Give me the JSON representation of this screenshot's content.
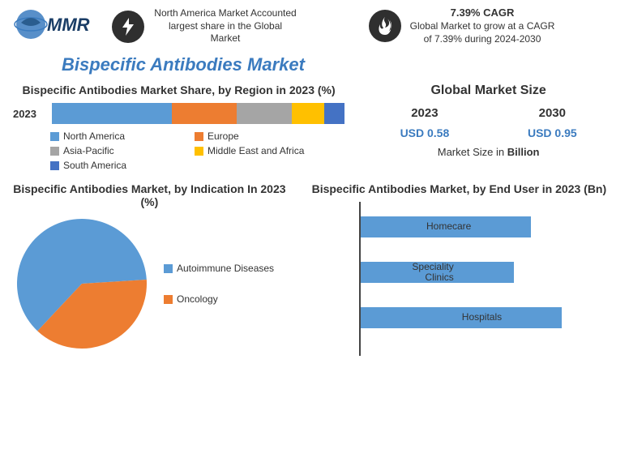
{
  "logo_text": "MMR",
  "top_stats": {
    "left": {
      "icon": "bolt",
      "text": "North America Market Accounted largest share in the Global Market"
    },
    "right": {
      "icon": "flame",
      "title": "7.39% CAGR",
      "text": "Global Market to grow at a CAGR of 7.39% during 2024-2030"
    }
  },
  "main_title": "Bispecific Antibodies Market",
  "region_chart": {
    "title": "Bispecific Antibodies Market Share, by Region in 2023 (%)",
    "year_label": "2023",
    "segments": [
      {
        "label": "North America",
        "value": 41,
        "color": "#5b9bd5"
      },
      {
        "label": "Europe",
        "value": 22,
        "color": "#ed7d31"
      },
      {
        "label": "Asia-Pacific",
        "value": 19,
        "color": "#a5a5a5"
      },
      {
        "label": "Middle East and Africa",
        "value": 11,
        "color": "#ffc000"
      },
      {
        "label": "South America",
        "value": 7,
        "color": "#4472c4"
      }
    ]
  },
  "market_size": {
    "title": "Global Market Size",
    "years": [
      "2023",
      "2030"
    ],
    "values": [
      "USD 0.58",
      "USD 0.95"
    ],
    "unit_prefix": "Market Size in ",
    "unit_bold": "Billion"
  },
  "indication_chart": {
    "title": "Bispecific Antibodies Market, by Indication In 2023 (%)",
    "slices": [
      {
        "label": "Autoimmune Diseases",
        "value": 62,
        "color": "#5b9bd5"
      },
      {
        "label": "Oncology",
        "value": 38,
        "color": "#ed7d31"
      }
    ]
  },
  "enduser_chart": {
    "title": "Bispecific Antibodies Market, by End User in 2023 (Bn)",
    "bar_color": "#5b9bd5",
    "max": 100,
    "bars": [
      {
        "label": "Homecare",
        "value": 78
      },
      {
        "label": "Speciality Clinics",
        "value": 70
      },
      {
        "label": "Hospitals",
        "value": 92
      }
    ]
  },
  "colors": {
    "accent": "#3b7bbf",
    "icon_bg": "#2f2f2f"
  }
}
